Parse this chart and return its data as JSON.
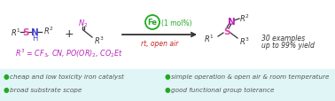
{
  "bg_top": "#ffffff",
  "bg_bottom": "#e0f5f5",
  "bullet_color": "#22aa22",
  "bullet_text_color": "#555555",
  "arrow_color": "#222222",
  "fe_circle_color": "#22aa22",
  "catalyst_color": "#22aa22",
  "condition_color": "#cc2222",
  "r3_line_color": "#bb22bb",
  "s_color": "#dd44aa",
  "n_color": "#4444cc",
  "diazo_n_color": "#bb22bb",
  "product_n_color": "#bb22bb",
  "product_s_color": "#dd44aa",
  "dark": "#333333",
  "italic_color": "#444444",
  "bullet_items_left": [
    "cheap and low toxicity iron catalyst",
    "broad substrate scope"
  ],
  "bullet_items_right": [
    "simple operation & open air & room temperature",
    "good functional group tolerance"
  ]
}
